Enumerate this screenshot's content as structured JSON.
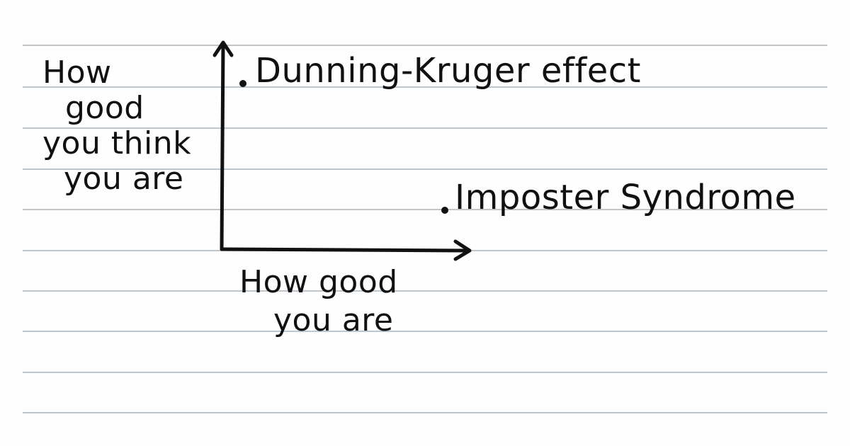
{
  "diagram": {
    "y_axis_label": [
      "How",
      "good",
      "you think",
      "you are"
    ],
    "x_axis_label": [
      "How good",
      "you are"
    ],
    "points": [
      {
        "label": "Dunning-Kruger effect"
      },
      {
        "label": "Imposter Syndrome"
      }
    ]
  },
  "colors": {
    "ink": "#111111",
    "paper": "#fefefe",
    "rule_line": "#a9b4be"
  }
}
